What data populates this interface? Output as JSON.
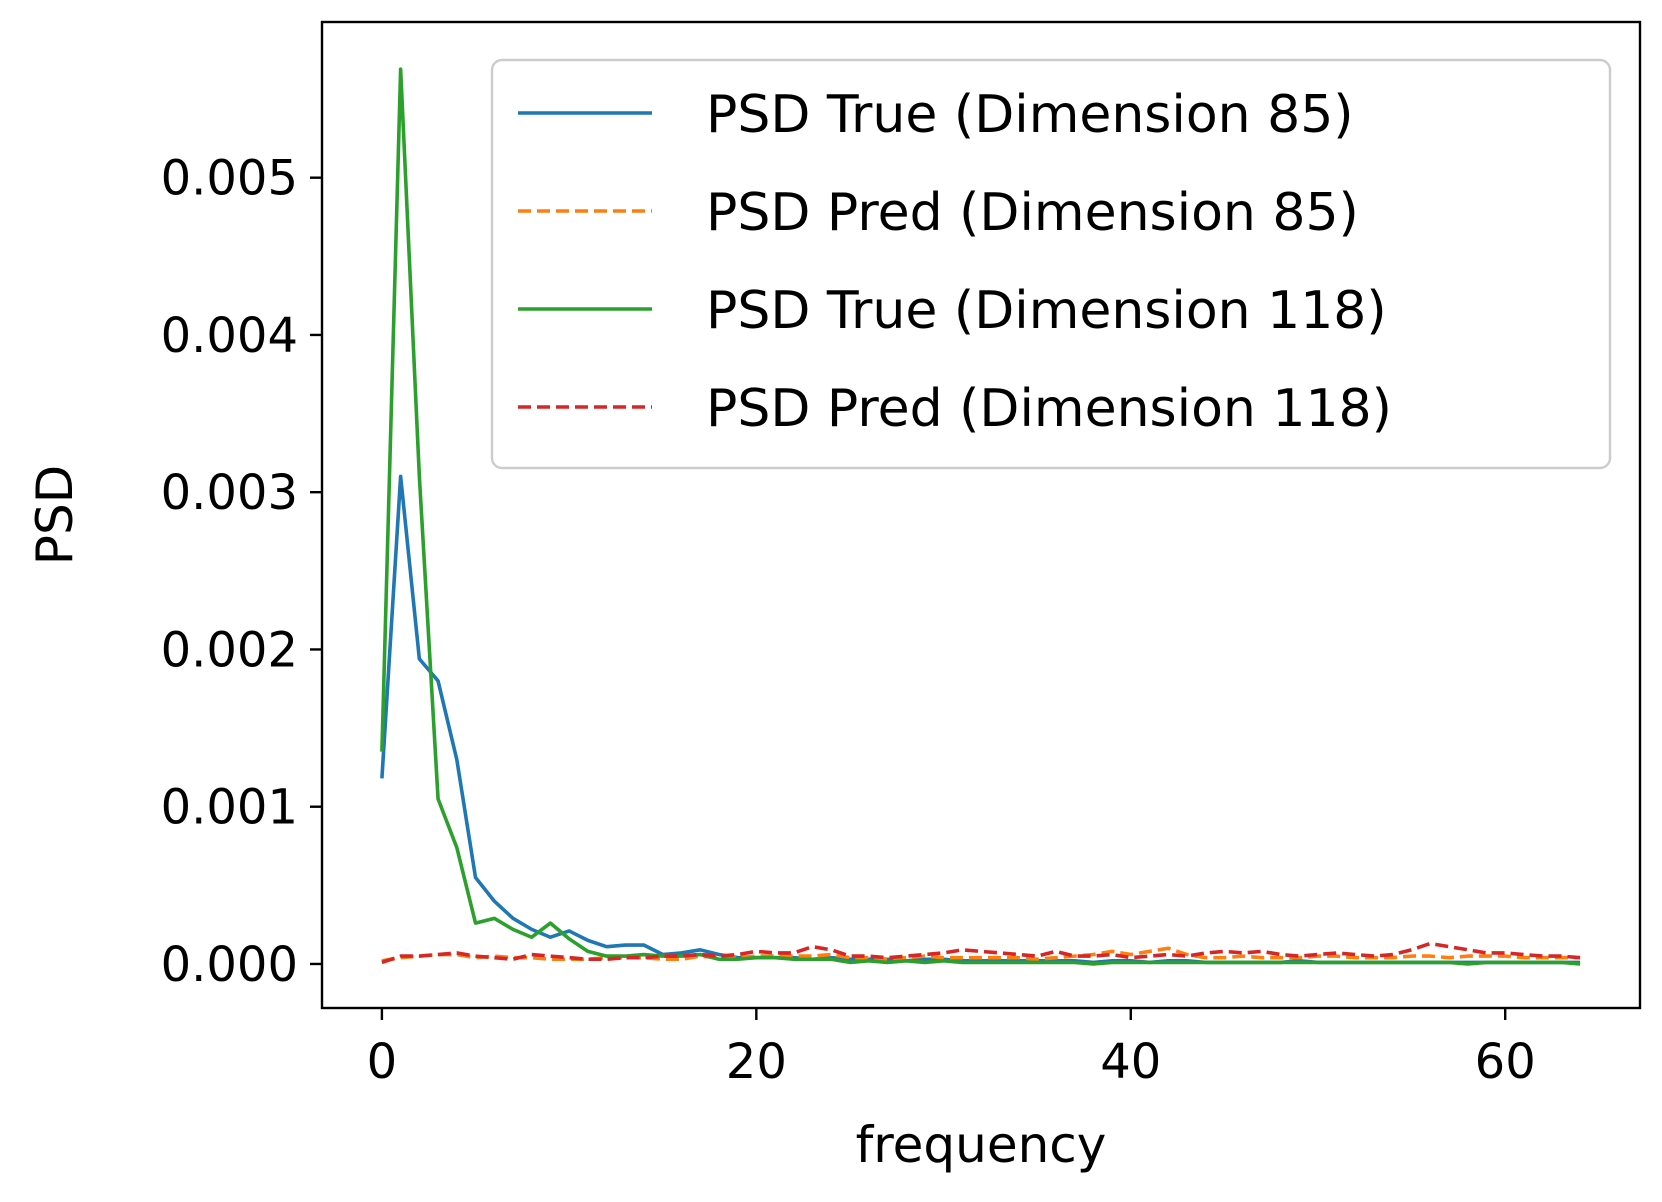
{
  "chart_data": {
    "type": "line",
    "title": "",
    "xlabel": "frequency",
    "ylabel": "PSD",
    "xlim": [
      -3.2,
      67.2
    ],
    "ylim": [
      -0.00028,
      0.00599
    ],
    "xticks": [
      0,
      20,
      40,
      60
    ],
    "xtick_labels": [
      "0",
      "20",
      "40",
      "60"
    ],
    "yticks": [
      0.0,
      0.001,
      0.002,
      0.003,
      0.004,
      0.005
    ],
    "ytick_labels": [
      "0.000",
      "0.001",
      "0.002",
      "0.003",
      "0.004",
      "0.005"
    ],
    "grid": false,
    "legend_position": "top-right",
    "x": [
      0,
      1,
      2,
      3,
      4,
      5,
      6,
      7,
      8,
      9,
      10,
      11,
      12,
      13,
      14,
      15,
      16,
      17,
      18,
      19,
      20,
      21,
      22,
      23,
      24,
      25,
      26,
      27,
      28,
      29,
      30,
      31,
      32,
      33,
      34,
      35,
      36,
      37,
      38,
      39,
      40,
      41,
      42,
      43,
      44,
      45,
      46,
      47,
      48,
      49,
      50,
      51,
      52,
      53,
      54,
      55,
      56,
      57,
      58,
      59,
      60,
      61,
      62,
      63,
      64
    ],
    "series": [
      {
        "name": "PSD True (Dimension 85)",
        "color": "#1f77b4",
        "dash": "solid",
        "values": [
          0.00118,
          0.0031,
          0.00194,
          0.0018,
          0.0013,
          0.00055,
          0.0004,
          0.00029,
          0.00022,
          0.00017,
          0.00021,
          0.00015,
          0.00011,
          0.00012,
          0.00012,
          6e-05,
          7e-05,
          9e-05,
          6e-05,
          4e-05,
          4e-05,
          4e-05,
          4e-05,
          3e-05,
          4e-05,
          3e-05,
          3e-05,
          3e-05,
          2e-05,
          3e-05,
          3e-05,
          2e-05,
          2e-05,
          2e-05,
          2e-05,
          2e-05,
          2e-05,
          2e-05,
          1e-05,
          2e-05,
          2e-05,
          1e-05,
          2e-05,
          2e-05,
          1e-05,
          1e-05,
          1e-05,
          1e-05,
          1e-05,
          2e-05,
          1e-05,
          1e-05,
          1e-05,
          1e-05,
          1e-05,
          1e-05,
          1e-05,
          1e-05,
          1e-05,
          1e-05,
          1e-05,
          1e-05,
          1e-05,
          1e-05,
          1e-05
        ]
      },
      {
        "name": "PSD Pred (Dimension 85)",
        "color": "#ff7f0e",
        "dash": "dashed",
        "values": [
          2e-05,
          4e-05,
          5e-05,
          6e-05,
          6e-05,
          4e-05,
          5e-05,
          4e-05,
          4e-05,
          3e-05,
          3e-05,
          3e-05,
          4e-05,
          4e-05,
          4e-05,
          3e-05,
          3e-05,
          5e-05,
          4e-05,
          4e-05,
          5e-05,
          5e-05,
          5e-05,
          5e-05,
          6e-05,
          4e-05,
          4e-05,
          3e-05,
          4e-05,
          5e-05,
          4e-05,
          4e-05,
          4e-05,
          4e-05,
          4e-05,
          3e-05,
          4e-05,
          5e-05,
          6e-05,
          8e-05,
          6e-05,
          8e-05,
          0.0001,
          6e-05,
          4e-05,
          4e-05,
          5e-05,
          4e-05,
          4e-05,
          4e-05,
          5e-05,
          5e-05,
          4e-05,
          4e-05,
          4e-05,
          5e-05,
          5e-05,
          4e-05,
          5e-05,
          5e-05,
          5e-05,
          4e-05,
          4e-05,
          4e-05,
          4e-05
        ]
      },
      {
        "name": "PSD True (Dimension 118)",
        "color": "#2ca02c",
        "dash": "solid",
        "values": [
          0.00135,
          0.00569,
          0.0031,
          0.00105,
          0.00074,
          0.00026,
          0.00029,
          0.00022,
          0.00017,
          0.00026,
          0.00016,
          8e-05,
          5e-05,
          5e-05,
          6e-05,
          5e-05,
          5e-05,
          6e-05,
          3e-05,
          3e-05,
          4e-05,
          4e-05,
          3e-05,
          3e-05,
          3e-05,
          1e-05,
          2e-05,
          1e-05,
          2e-05,
          1e-05,
          2e-05,
          1e-05,
          1e-05,
          1e-05,
          1e-05,
          1e-05,
          1e-05,
          1e-05,
          0.0,
          1e-05,
          1e-05,
          1e-05,
          1e-05,
          1e-05,
          1e-05,
          1e-05,
          1e-05,
          1e-05,
          1e-05,
          1e-05,
          1e-05,
          1e-05,
          1e-05,
          1e-05,
          1e-05,
          1e-05,
          1e-05,
          1e-05,
          0.0,
          1e-05,
          1e-05,
          1e-05,
          1e-05,
          1e-05,
          0.0
        ]
      },
      {
        "name": "PSD Pred (Dimension 118)",
        "color": "#d62728",
        "dash": "dashed",
        "values": [
          1e-05,
          5e-05,
          5e-05,
          6e-05,
          7e-05,
          5e-05,
          4e-05,
          3e-05,
          6e-05,
          5e-05,
          4e-05,
          3e-05,
          3e-05,
          4e-05,
          4e-05,
          5e-05,
          5e-05,
          6e-05,
          5e-05,
          6e-05,
          8e-05,
          7e-05,
          7e-05,
          0.00011,
          9e-05,
          5e-05,
          5e-05,
          4e-05,
          5e-05,
          6e-05,
          7e-05,
          9e-05,
          8e-05,
          7e-05,
          6e-05,
          5e-05,
          8e-05,
          5e-05,
          5e-05,
          6e-05,
          4e-05,
          5e-05,
          6e-05,
          5e-05,
          7e-05,
          8e-05,
          7e-05,
          8e-05,
          6e-05,
          5e-05,
          6e-05,
          7e-05,
          6e-05,
          5e-05,
          6e-05,
          9e-05,
          0.00013,
          0.00011,
          9e-05,
          7e-05,
          7e-05,
          6e-05,
          5e-05,
          5e-05,
          4e-05
        ]
      }
    ]
  }
}
